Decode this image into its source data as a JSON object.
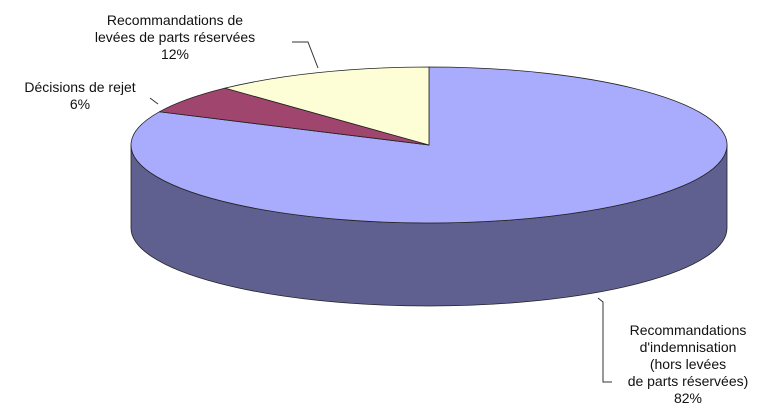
{
  "chart_data": {
    "type": "pie",
    "style": "3d",
    "title": "",
    "slices": [
      {
        "label_lines": [
          "Recommandations",
          "d'indemnisation",
          "(hors levées",
          "de parts réservées)"
        ],
        "percent_label": "82%",
        "value": 82,
        "color": "#A9ACFD",
        "side_color": "#5F6090"
      },
      {
        "label_lines": [
          "Décisions de rejet"
        ],
        "percent_label": "6%",
        "value": 6,
        "color": "#A0456E",
        "side_color": "#5E1F3F"
      },
      {
        "label_lines": [
          "Recommandations de",
          "levées de parts réservées"
        ],
        "percent_label": "12%",
        "value": 12,
        "color": "#FEFED6",
        "side_color": "#B9B99A"
      }
    ]
  }
}
